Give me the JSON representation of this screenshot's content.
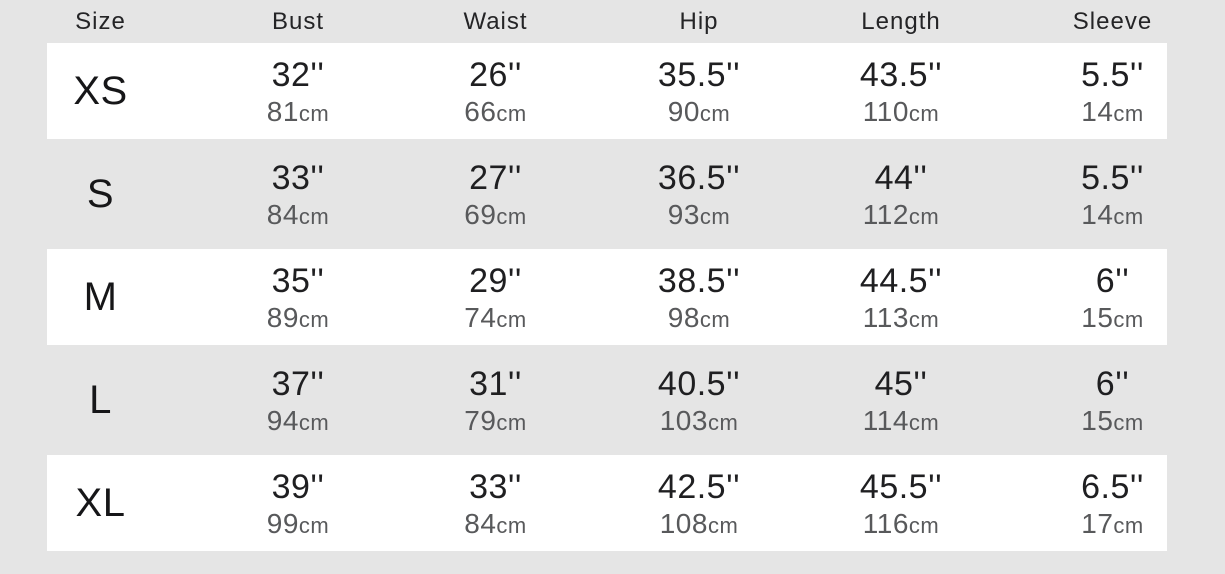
{
  "colors": {
    "background": "#e5e5e5",
    "stripe": "#ffffff",
    "dark_text": "#1f1f21",
    "grey_text": "#58595b"
  },
  "table": {
    "unit_suffix": "cm",
    "columns": [
      {
        "label": "Size"
      },
      {
        "label": "Bust"
      },
      {
        "label": "Waist"
      },
      {
        "label": "Hip"
      },
      {
        "label": "Length"
      },
      {
        "label": "Sleeve"
      }
    ],
    "rows": [
      {
        "size": "XS",
        "cells": [
          {
            "in": "32''",
            "cm": "81"
          },
          {
            "in": "26''",
            "cm": "66"
          },
          {
            "in": "35.5''",
            "cm": "90"
          },
          {
            "in": "43.5''",
            "cm": "110"
          },
          {
            "in": "5.5''",
            "cm": "14"
          }
        ]
      },
      {
        "size": "S",
        "cells": [
          {
            "in": "33''",
            "cm": "84"
          },
          {
            "in": "27''",
            "cm": "69"
          },
          {
            "in": "36.5''",
            "cm": "93"
          },
          {
            "in": "44''",
            "cm": "112"
          },
          {
            "in": "5.5''",
            "cm": "14"
          }
        ]
      },
      {
        "size": "M",
        "cells": [
          {
            "in": "35''",
            "cm": "89"
          },
          {
            "in": "29''",
            "cm": "74"
          },
          {
            "in": "38.5''",
            "cm": "98"
          },
          {
            "in": "44.5''",
            "cm": "113"
          },
          {
            "in": "6''",
            "cm": "15"
          }
        ]
      },
      {
        "size": "L",
        "cells": [
          {
            "in": "37''",
            "cm": "94"
          },
          {
            "in": "31''",
            "cm": "79"
          },
          {
            "in": "40.5''",
            "cm": "103"
          },
          {
            "in": "45''",
            "cm": "114"
          },
          {
            "in": "6''",
            "cm": "15"
          }
        ]
      },
      {
        "size": "XL",
        "cells": [
          {
            "in": "39''",
            "cm": "99"
          },
          {
            "in": "33''",
            "cm": "84"
          },
          {
            "in": "42.5''",
            "cm": "108"
          },
          {
            "in": "45.5''",
            "cm": "116"
          },
          {
            "in": "6.5''",
            "cm": "17"
          }
        ]
      }
    ]
  },
  "chart_data": {
    "type": "table",
    "columns": [
      "Size",
      "Bust",
      "Waist",
      "Hip",
      "Length",
      "Sleeve"
    ],
    "rows_inches": [
      [
        "XS",
        "32''",
        "26''",
        "35.5''",
        "43.5''",
        "5.5''"
      ],
      [
        "S",
        "33''",
        "27''",
        "36.5''",
        "44''",
        "5.5''"
      ],
      [
        "M",
        "35''",
        "29''",
        "38.5''",
        "44.5''",
        "6''"
      ],
      [
        "L",
        "37''",
        "31''",
        "40.5''",
        "45''",
        "6''"
      ],
      [
        "XL",
        "39''",
        "33''",
        "42.5''",
        "45.5''",
        "6.5''"
      ]
    ],
    "rows_cm": [
      [
        "XS",
        81,
        66,
        90,
        110,
        14
      ],
      [
        "S",
        84,
        69,
        93,
        112,
        14
      ],
      [
        "M",
        89,
        74,
        98,
        113,
        15
      ],
      [
        "L",
        94,
        79,
        103,
        114,
        15
      ],
      [
        "XL",
        99,
        84,
        108,
        116,
        17
      ]
    ]
  }
}
